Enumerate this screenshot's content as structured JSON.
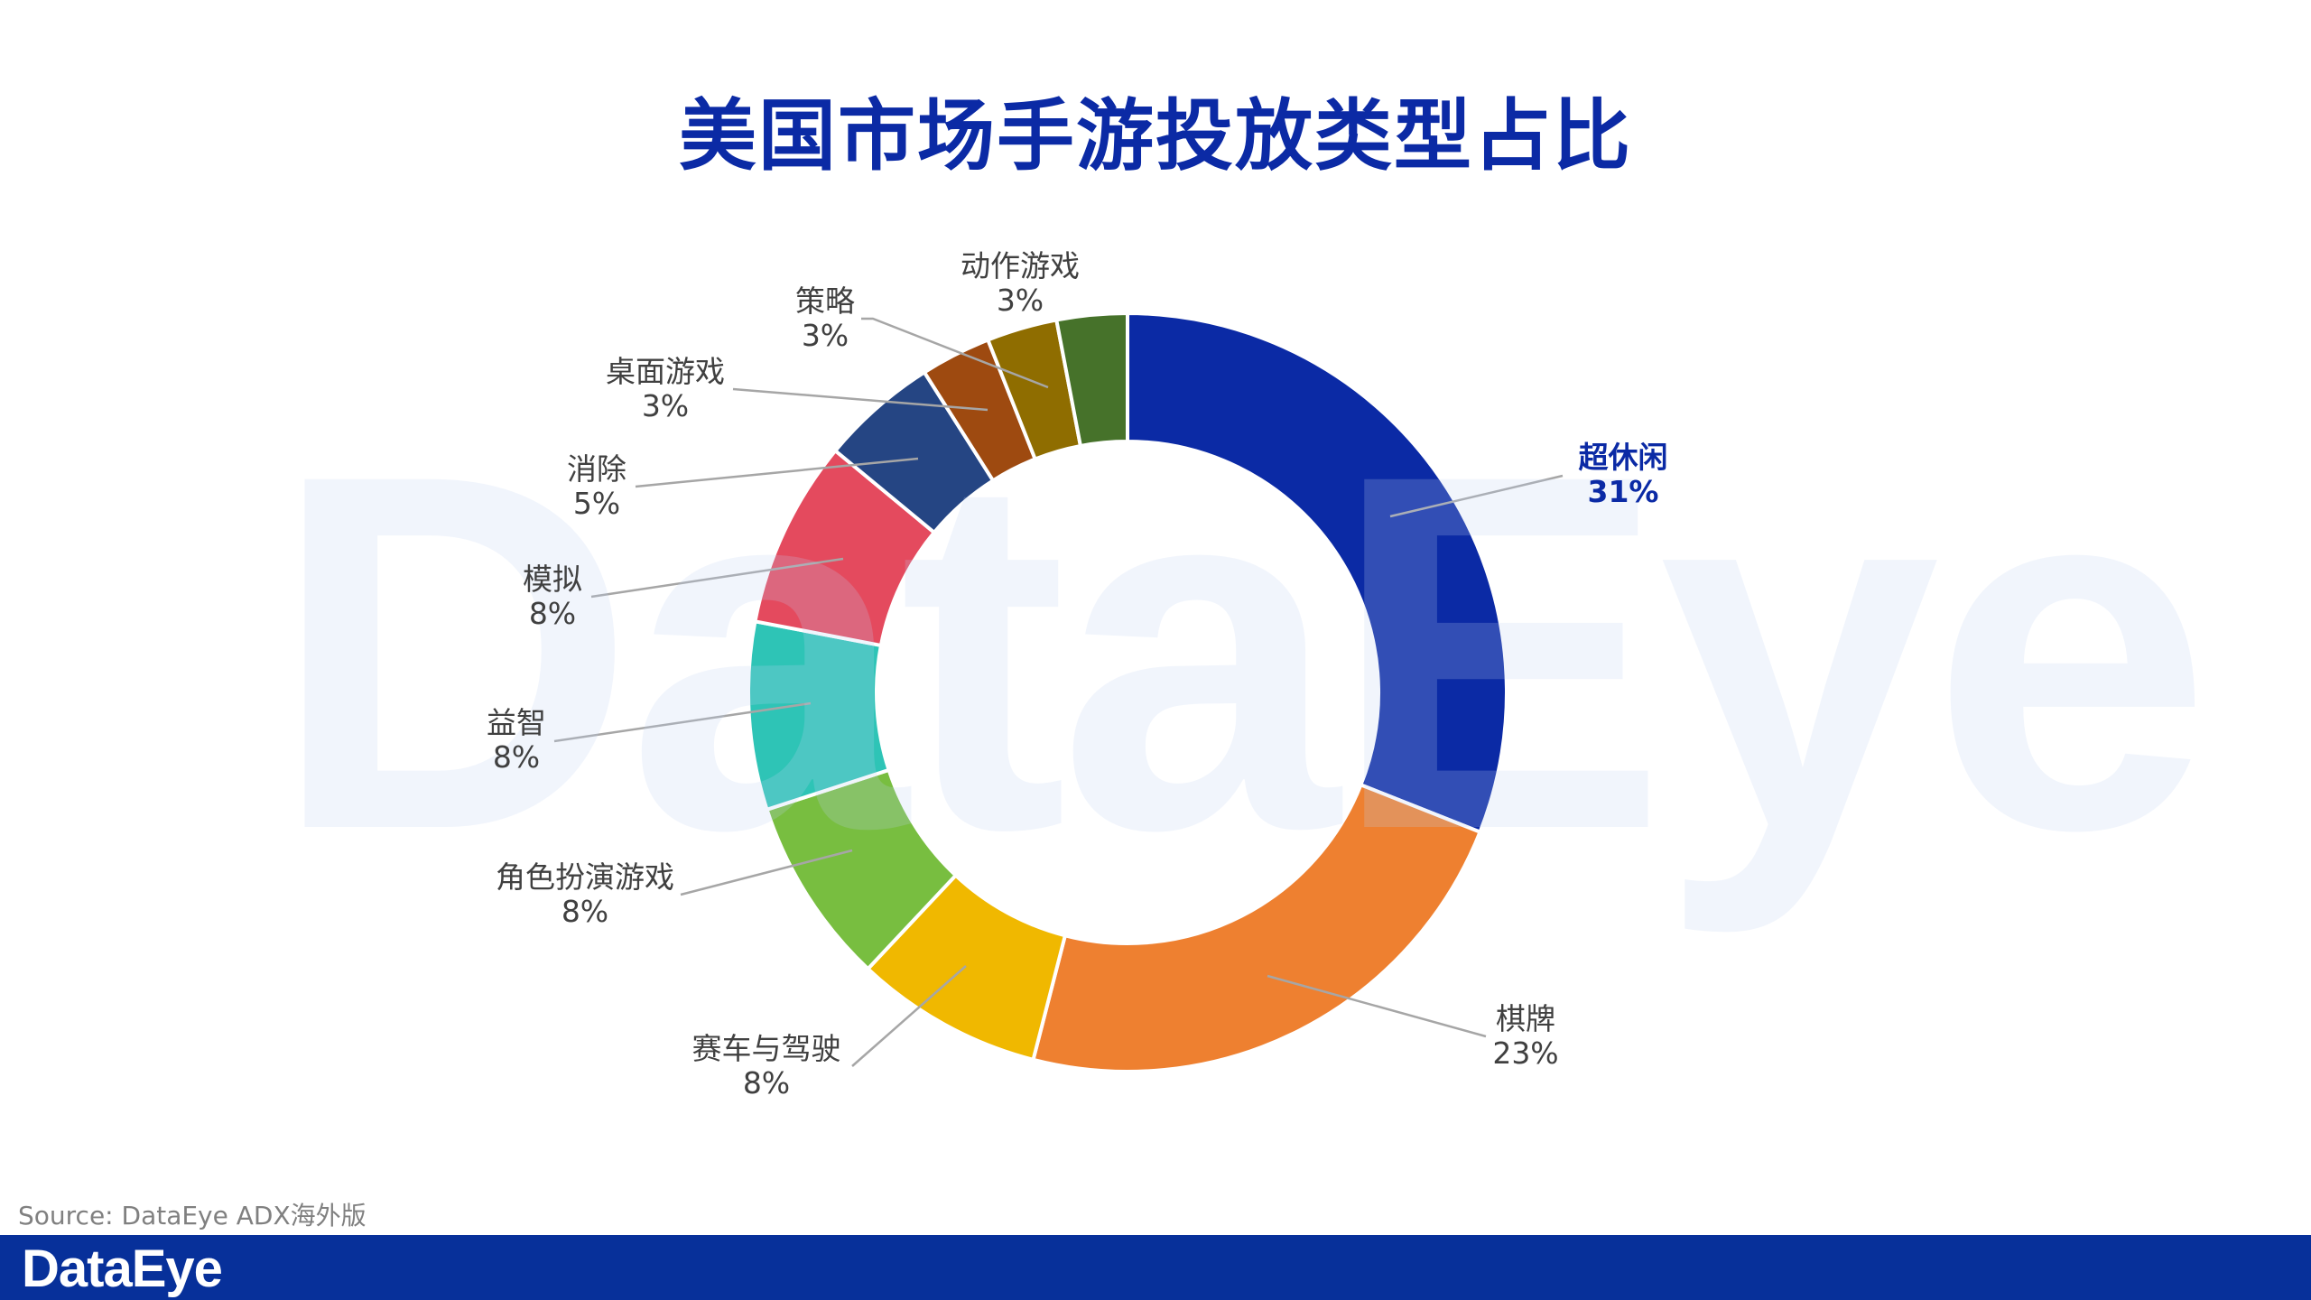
{
  "chart_data": {
    "type": "pie",
    "variant": "donut",
    "title": "美国市场手游投放类型占比",
    "start": "top",
    "direction": "clockwise",
    "slices": [
      {
        "label": "超休闲",
        "value": 31,
        "display": "31%",
        "color": "#0B2AA5",
        "highlight": true
      },
      {
        "label": "棋牌",
        "value": 23,
        "display": "23%",
        "color": "#EE8030"
      },
      {
        "label": "赛车与驾驶",
        "value": 8,
        "display": "8%",
        "color": "#F0B800"
      },
      {
        "label": "角色扮演游戏",
        "value": 8,
        "display": "8%",
        "color": "#78BE40"
      },
      {
        "label": "益智",
        "value": 8,
        "display": "8%",
        "color": "#2EC4B6"
      },
      {
        "label": "模拟",
        "value": 8,
        "display": "8%",
        "color": "#E44A5E"
      },
      {
        "label": "消除",
        "value": 5,
        "display": "5%",
        "color": "#254583"
      },
      {
        "label": "桌面游戏",
        "value": 3,
        "display": "3%",
        "color": "#9E4A10"
      },
      {
        "label": "策略",
        "value": 3,
        "display": "3%",
        "color": "#8F6D00"
      },
      {
        "label": "动作游戏",
        "value": 3,
        "display": "3%",
        "color": "#46722A"
      }
    ]
  },
  "watermark": "DataEye",
  "source": "Source: DataEye ADX海外版",
  "footer": {
    "logo": "DataEye",
    "color": "#07309A"
  }
}
